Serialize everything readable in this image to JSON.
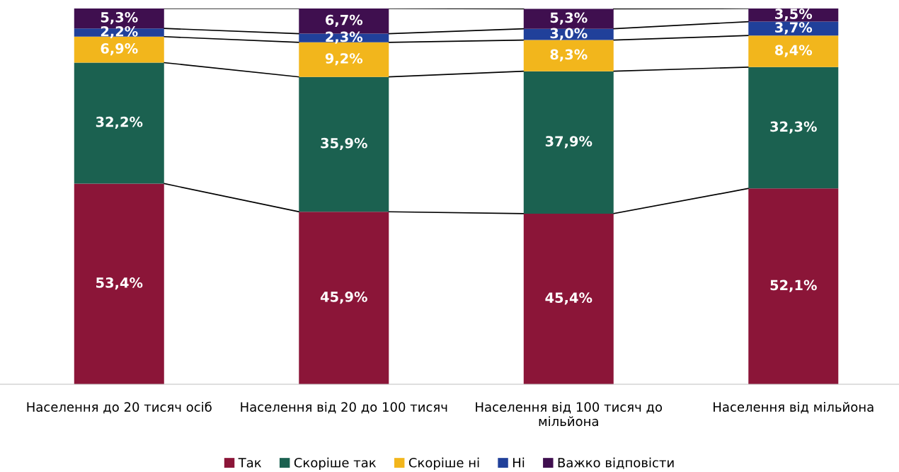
{
  "chart_data": {
    "type": "bar",
    "stacked": true,
    "legend": "bottom",
    "categories": [
      "Населення до 20 тисяч осіб",
      "Населення від 20 до 100 тисяч",
      "Населення від 100 тисяч до\nмільйона",
      "Населення від мільйона"
    ],
    "series": [
      {
        "name": "Так",
        "color": "#8b1538",
        "values": [
          53.4,
          45.9,
          45.4,
          52.1
        ],
        "value_labels": [
          "53,4%",
          "45,9%",
          "45,4%",
          "52,1%"
        ]
      },
      {
        "name": "Скоріше так",
        "color": "#1b6150",
        "values": [
          32.2,
          35.9,
          37.9,
          32.3
        ],
        "value_labels": [
          "32,2%",
          "35,9%",
          "37,9%",
          "32,3%"
        ]
      },
      {
        "name": "Скоріше ні",
        "color": "#f2b61c",
        "values": [
          6.9,
          9.2,
          8.3,
          8.4
        ],
        "value_labels": [
          "6,9%",
          "9,2%",
          "8,3%",
          "8,4%"
        ]
      },
      {
        "name": "Ні",
        "color": "#20409a",
        "values": [
          2.2,
          2.3,
          3.0,
          3.7
        ],
        "value_labels": [
          "2,2%",
          "2,3%",
          "3,0%",
          "3,7%"
        ]
      },
      {
        "name": "Важко відповісти",
        "color": "#3f0f4f",
        "values": [
          5.3,
          6.7,
          5.3,
          3.5
        ],
        "value_labels": [
          "5,3%",
          "6,7%",
          "5,3%",
          "3,5%"
        ]
      }
    ]
  }
}
